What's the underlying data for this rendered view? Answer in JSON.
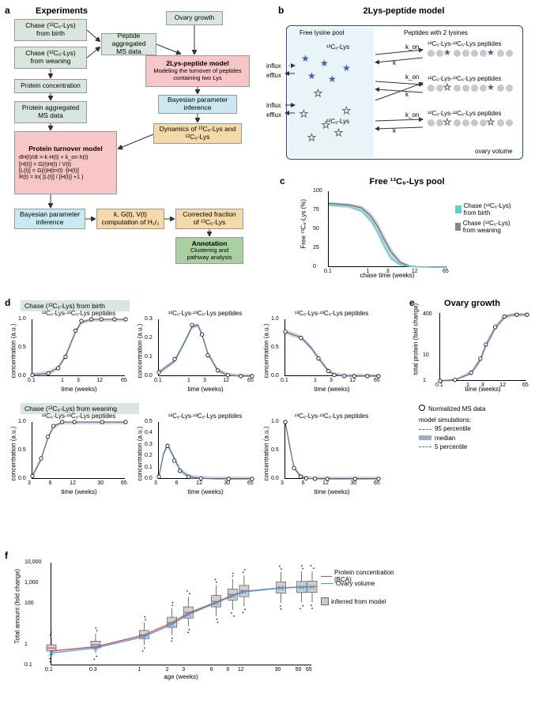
{
  "colors": {
    "exp_box": "#d9e6dd",
    "model_box": "#f8c6c6",
    "bayes_box": "#c9e8f2",
    "out_box": "#f5d9a8",
    "ann_box": "#a8d0a0",
    "band_fill": "#9aaec6",
    "band_border": "#5a728f",
    "cyan_line": "#5ecfcf",
    "red_line": "#e04040",
    "blue_line": "#3aa0e0",
    "star_blue": "#3a5db8",
    "bead_grey": "#c8c8c8",
    "box_outline": "#1a4a8a"
  },
  "panels": {
    "a": {
      "letter": "a",
      "title": "Experiments"
    },
    "b": {
      "letter": "b",
      "title": "2Lys-peptide model",
      "free_lbl": "Free lysine pool",
      "pep_lbl": "Peptides with 2 lysines",
      "c13": "¹³C₆-Lys",
      "c12": "¹²C₆-Lys",
      "pep13_13": "¹³C₆-Lys-¹³C₆-Lys peptides",
      "pep12_13": "¹²C₆-Lys-¹³C₆-Lys peptides",
      "pep12_12": "¹²C₆-Lys-¹²C₆-Lys peptides",
      "kon": "k_on",
      "k": "k",
      "influx": "influx",
      "efflux": "efflux",
      "ovary_vol": "ovary volume"
    },
    "c": {
      "letter": "c",
      "title": "Free ¹³C₆-Lys pool",
      "ylabel": "Free ¹³C₆-Lys (%)",
      "xlabel": "chase time (weeks)",
      "legend_birth": "Chase (¹²C₆-Lys) from birth",
      "legend_wean": "Chase (¹²C₆-Lys) from weaning",
      "xticks": [
        "0.1",
        "1",
        "3",
        "12",
        "65"
      ],
      "yticks": [
        "0",
        "25",
        "50",
        "75",
        "100"
      ],
      "curve_birth": {
        "x": [
          0.1,
          0.3,
          0.6,
          1,
          1.5,
          2,
          3,
          5,
          8,
          12,
          30,
          65
        ],
        "y": [
          82,
          80,
          74,
          62,
          45,
          30,
          12,
          3,
          1,
          0.3,
          0,
          0
        ]
      },
      "curve_wean": {
        "x": [
          0.1,
          0.3,
          0.6,
          1,
          1.5,
          2,
          3,
          5,
          8,
          12,
          30,
          65
        ],
        "y": [
          84,
          82,
          78,
          67,
          52,
          38,
          20,
          6,
          1.5,
          0.5,
          0,
          0
        ]
      },
      "band_lo": {
        "x": [
          0.1,
          0.3,
          0.6,
          1,
          1.5,
          2,
          3,
          5,
          8,
          12,
          30,
          65
        ],
        "y": [
          80,
          78,
          72,
          58,
          41,
          25,
          9,
          1.5,
          0.3,
          0,
          0,
          0
        ]
      },
      "band_hi": {
        "x": [
          0.1,
          0.3,
          0.6,
          1,
          1.5,
          2,
          3,
          5,
          8,
          12,
          30,
          65
        ],
        "y": [
          86,
          84,
          81,
          72,
          58,
          44,
          26,
          9,
          3,
          1,
          0,
          0
        ]
      }
    },
    "d": {
      "letter": "d",
      "header_birth": "Chase (¹²C₆-Lys) from birth",
      "header_wean": "Chase (¹²C₆-Lys) from weaning",
      "titles": [
        "¹²C₆-Lys-¹²C₆-Lys peptides",
        "¹²C₆-Lys-¹³C₆-Lys peptides",
        "¹³C₆-Lys-¹³C₆-Lys peptides"
      ],
      "ylabel": "concentration (a.u.)",
      "xlabel": "time (weeks)",
      "row1": {
        "xticks": [
          "0.1",
          "1",
          "3",
          "12",
          "65"
        ],
        "yticks": [
          "0.0",
          "0.5",
          "1.0"
        ],
        "p1": {
          "line": {
            "x": [
              0.1,
              0.3,
              0.6,
              1,
              2,
              3,
              6,
              12,
              30,
              65
            ],
            "y": [
              0.02,
              0.05,
              0.15,
              0.35,
              0.78,
              0.95,
              1.0,
              1.0,
              1.0,
              1.0
            ]
          },
          "pts": {
            "x": [
              0.1,
              0.3,
              0.6,
              1,
              2,
              3,
              6,
              12,
              30,
              65
            ],
            "y": [
              0.02,
              0.05,
              0.14,
              0.34,
              0.8,
              0.97,
              1.0,
              1.0,
              1.0,
              1.0
            ]
          }
        },
        "p2": {
          "yticks": [
            "0.0",
            "0.1",
            "0.2",
            "0.3"
          ],
          "line": {
            "x": [
              0.1,
              0.3,
              0.6,
              1,
              1.5,
              2,
              3,
              6,
              12,
              30,
              65
            ],
            "y": [
              0.02,
              0.08,
              0.18,
              0.26,
              0.27,
              0.22,
              0.12,
              0.03,
              0.005,
              0,
              0
            ]
          },
          "pts": {
            "x": [
              0.1,
              0.3,
              1,
              2,
              3,
              6,
              12,
              30,
              65
            ],
            "y": [
              0.02,
              0.09,
              0.27,
              0.22,
              0.11,
              0.03,
              0.005,
              0,
              0
            ]
          }
        },
        "p3": {
          "line": {
            "x": [
              0.1,
              0.3,
              0.6,
              1,
              2,
              3,
              6,
              12,
              30,
              65
            ],
            "y": [
              0.78,
              0.68,
              0.5,
              0.32,
              0.09,
              0.03,
              0.003,
              0,
              0,
              0
            ]
          },
          "pts": {
            "x": [
              0.1,
              0.3,
              1,
              2,
              3,
              6,
              12,
              30,
              65
            ],
            "y": [
              0.78,
              0.67,
              0.31,
              0.09,
              0.02,
              0.002,
              0,
              0,
              0
            ]
          }
        }
      },
      "row2": {
        "xticks": [
          "3",
          "6",
          "12",
          "30",
          "65"
        ],
        "yticks": [
          "0.0",
          "0.5",
          "1.0"
        ],
        "p1": {
          "line": {
            "x": [
              3,
              4,
              5,
              6,
              8,
              12,
              20,
              30,
              50,
              65
            ],
            "y": [
              0.05,
              0.35,
              0.72,
              0.92,
              1.0,
              1.0,
              1.0,
              1.0,
              1.0,
              1.0
            ]
          },
          "pts": {
            "x": [
              3,
              4,
              5,
              6,
              8,
              12,
              30,
              65
            ],
            "y": [
              0.05,
              0.36,
              0.74,
              0.93,
              1.0,
              1.0,
              1.0,
              1.0
            ]
          }
        },
        "p2": {
          "yticks": [
            "0.0",
            "0.1",
            "0.2",
            "0.3",
            "0.4",
            "0.5"
          ],
          "line": {
            "x": [
              3,
              3.5,
              4,
              5,
              6,
              8,
              12,
              20,
              30,
              65
            ],
            "y": [
              0.02,
              0.22,
              0.3,
              0.18,
              0.08,
              0.02,
              0.005,
              0,
              0,
              0
            ]
          },
          "pts": {
            "x": [
              3,
              4,
              5,
              6,
              8,
              12,
              30,
              65
            ],
            "y": [
              0.02,
              0.29,
              0.16,
              0.07,
              0.02,
              0.004,
              0,
              0
            ]
          }
        },
        "p3": {
          "line": {
            "x": [
              3,
              3.5,
              4,
              5,
              6,
              8,
              12,
              20,
              30,
              65
            ],
            "y": [
              1.0,
              0.55,
              0.2,
              0.04,
              0.01,
              0.002,
              0,
              0,
              0,
              0
            ]
          },
          "pts": {
            "x": [
              3,
              4,
              5,
              6,
              8,
              12,
              30,
              65
            ],
            "y": [
              1.0,
              0.19,
              0.04,
              0.01,
              0.002,
              0,
              0,
              0
            ]
          }
        }
      }
    },
    "e": {
      "letter": "e",
      "title": "Ovary growth",
      "ylabel": "total protein (fold change)",
      "xlabel": "time (weeks)",
      "xticks": [
        "0.1",
        "1",
        "3",
        "12",
        "65"
      ],
      "yticks": [
        "1",
        "10",
        "400"
      ],
      "line": {
        "x": [
          0.1,
          0.3,
          1,
          2,
          3,
          6,
          12,
          20,
          30,
          50,
          65
        ],
        "y": [
          1,
          1.1,
          2,
          7,
          25,
          120,
          320,
          390,
          400,
          400,
          400
        ]
      },
      "band_lo": {
        "x": [
          0.1,
          0.3,
          1,
          2,
          3,
          6,
          12,
          20,
          30,
          50,
          65
        ],
        "y": [
          0.9,
          1.0,
          1.7,
          5,
          18,
          90,
          260,
          330,
          340,
          340,
          340
        ]
      },
      "band_hi": {
        "x": [
          0.1,
          0.3,
          1,
          2,
          3,
          6,
          12,
          20,
          30,
          50,
          65
        ],
        "y": [
          1.1,
          1.2,
          2.5,
          9,
          33,
          160,
          400,
          460,
          470,
          470,
          470
        ]
      },
      "pts": {
        "x": [
          0.1,
          0.3,
          1,
          2,
          3,
          6,
          12,
          30,
          65
        ],
        "y": [
          1,
          1.1,
          2.1,
          7.5,
          27,
          130,
          340,
          400,
          400
        ]
      },
      "legend": {
        "ms": "Normalized MS data",
        "sim": "model simulations:",
        "p95": "95 percentile",
        "med": "median",
        "p5": "5 percentile"
      }
    },
    "f": {
      "letter": "f",
      "ylabel": "Total amount (fold change)",
      "xlabel": "age (weeks)",
      "xticks": [
        "0.1",
        "0.3",
        "1",
        "2",
        "3",
        "6",
        "9",
        "12",
        "30",
        "50",
        "65"
      ],
      "yticks": [
        "0.1",
        "1",
        "100",
        "1,000",
        "10,000"
      ],
      "legend": {
        "bca": "Protein concentration (BCA)",
        "vol": "Ovary volume",
        "inf": "inferred from model"
      },
      "bca_line": {
        "x": [
          0.1,
          0.3,
          1,
          2,
          3,
          6,
          9,
          12,
          30,
          50,
          65
        ],
        "y": [
          0.5,
          0.8,
          3,
          12,
          35,
          120,
          260,
          400,
          600,
          650,
          680
        ]
      },
      "vol_line": {
        "x": [
          0.1,
          0.3,
          1,
          2,
          3,
          6,
          9,
          12,
          30,
          50,
          65
        ],
        "y": [
          0.4,
          0.7,
          2.5,
          10,
          30,
          110,
          240,
          380,
          580,
          630,
          660
        ]
      },
      "vol_cross": {
        "x": [
          0.1,
          0.3,
          1,
          2,
          3,
          6,
          9,
          12,
          30,
          50,
          65
        ],
        "y": [
          0.4,
          0.7,
          2.5,
          10,
          30,
          110,
          240,
          380,
          580,
          630,
          660
        ]
      },
      "boxes": [
        {
          "x": 0.1,
          "q1": 0.5,
          "med": 0.7,
          "q3": 1.0,
          "lo": 0.3,
          "hi": 2.2
        },
        {
          "x": 0.3,
          "q1": 0.7,
          "med": 1.0,
          "q3": 1.5,
          "lo": 0.4,
          "hi": 3.5
        },
        {
          "x": 1,
          "q1": 2.0,
          "med": 3.0,
          "q3": 5.0,
          "lo": 1.0,
          "hi": 12
        },
        {
          "x": 2,
          "q1": 7,
          "med": 12,
          "q3": 22,
          "lo": 3,
          "hi": 60
        },
        {
          "x": 3,
          "q1": 20,
          "med": 38,
          "q3": 70,
          "lo": 8,
          "hi": 220
        },
        {
          "x": 6,
          "q1": 70,
          "med": 130,
          "q3": 250,
          "lo": 25,
          "hi": 800
        },
        {
          "x": 9,
          "q1": 150,
          "med": 280,
          "q3": 520,
          "lo": 50,
          "hi": 1600
        },
        {
          "x": 12,
          "q1": 220,
          "med": 420,
          "q3": 780,
          "lo": 75,
          "hi": 2400
        },
        {
          "x": 30,
          "q1": 330,
          "med": 620,
          "q3": 1150,
          "lo": 110,
          "hi": 3500
        },
        {
          "x": 50,
          "q1": 350,
          "med": 660,
          "q3": 1220,
          "lo": 115,
          "hi": 3700
        },
        {
          "x": 65,
          "q1": 360,
          "med": 680,
          "q3": 1260,
          "lo": 120,
          "hi": 3800
        }
      ]
    }
  },
  "flow": {
    "boxes": {
      "exp_title": "Experiments",
      "birth": "Chase (¹²C₆-Lys) from birth",
      "wean": "Chase (¹²C₆-Lys) from weaning",
      "ovary": "Ovary growth",
      "pep_ms": "Peptide aggregated MS data",
      "prot_conc": "Protein concentration",
      "prot_ms": "Protein aggregated MS data",
      "model2lys_t": "2Lys-peptide model",
      "model2lys_s": "Modeling the turnover of peptides containing two Lys",
      "bayes1": "Bayesian parameter inference",
      "dyn": "Dynamics of ¹³C₆-Lys and ¹²C₆-Lys",
      "pto_t": "Protein turnover model",
      "pto_s": "dH(t)/dt =-k·H(t) + k_on·h(t)\n[H(t)] = G(t)H(t) / V(t)\n[L(t)] = G(t)H(t=0) -[H(t)]\nR(t) = ln( [L(t)] / [H(t)] +1 )",
      "bayes2": "Bayesian parameter inference",
      "half": "k, G(t), V(t) computation of H₁/₂",
      "corr": "Corrected fraction of ¹³C₆-Lys",
      "ann_t": "Annotation",
      "ann_s": "Clustering and pathway analysis"
    }
  }
}
